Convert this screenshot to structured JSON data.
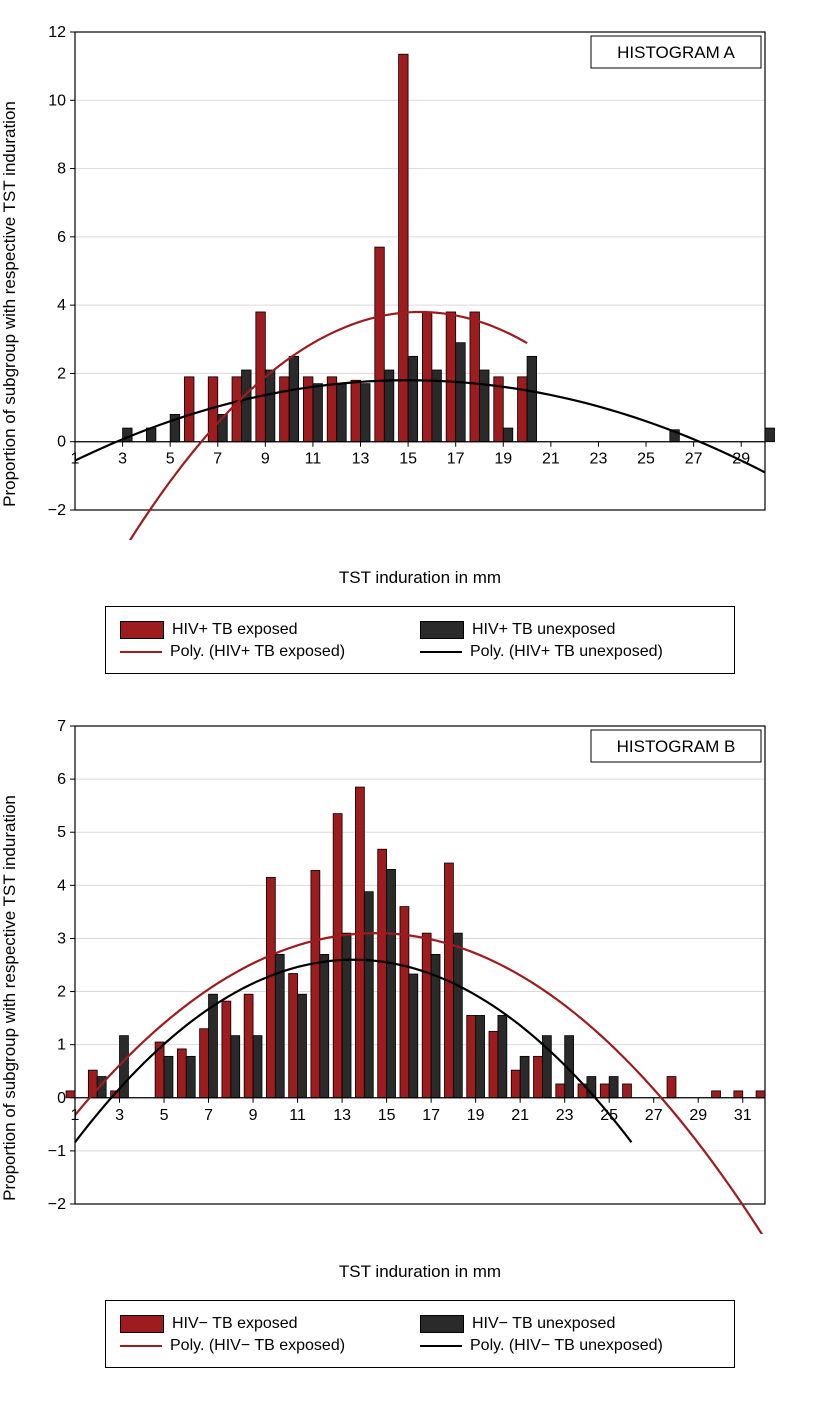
{
  "global": {
    "ylabel": "Proportion of subgroup with respective TST induration",
    "xlabel": "TST induration in mm",
    "colors": {
      "series1_fill": "#9e1b1e",
      "series2_fill": "#2a2a2a",
      "bar_stroke": "#000000",
      "line1": "#9e1b1e",
      "line2": "#000000",
      "grid": "#d9d9d9",
      "axis": "#000000",
      "background": "#ffffff"
    },
    "line_width": 2.2,
    "bar_stroke_width": 0.8,
    "grid_width": 1,
    "axis_width": 1.2,
    "tick_fontsize": 16,
    "label_fontsize": 17
  },
  "panelA": {
    "title": "HISTOGRAM A",
    "x_min": 1,
    "x_max": 30,
    "y_min": -2,
    "y_max": 12,
    "y_ticks": [
      -2,
      0,
      2,
      4,
      6,
      8,
      10,
      12
    ],
    "x_ticks": [
      1,
      3,
      5,
      7,
      9,
      11,
      13,
      15,
      17,
      19,
      21,
      23,
      25,
      27,
      29
    ],
    "bar_group_width": 0.8,
    "series1": {
      "label": "HIV+ TB exposed",
      "values": {
        "6": 1.9,
        "7": 1.9,
        "8": 1.9,
        "9": 3.8,
        "10": 1.9,
        "11": 1.9,
        "12": 1.9,
        "13": 1.8,
        "14": 5.7,
        "15": 11.35,
        "16": 3.8,
        "17": 3.8,
        "18": 3.8,
        "19": 1.9,
        "20": 1.9
      }
    },
    "series2": {
      "label": "HIV+ TB unexposed",
      "values": {
        "3": 0.4,
        "4": 0.4,
        "5": 0.8,
        "7": 0.8,
        "8": 2.1,
        "9": 2.1,
        "10": 2.5,
        "11": 1.7,
        "12": 1.7,
        "13": 1.7,
        "14": 2.1,
        "15": 2.5,
        "16": 2.1,
        "17": 2.9,
        "18": 2.1,
        "19": 0.4,
        "20": 2.5,
        "26": 0.35,
        "30": 0.4
      }
    },
    "poly1": {
      "label": "Poly. (HIV+ TB exposed)",
      "x_start": 1,
      "x_end": 20,
      "a": -0.045,
      "h": 15.5,
      "k": 3.8,
      "shift_at_start": -1.2
    },
    "poly2": {
      "label": "Poly. (HIV+ TB unexposed)",
      "x_start": 1,
      "x_end": 30,
      "a": -0.012,
      "h": 15,
      "k": 1.8,
      "shift_at_start": 0
    }
  },
  "panelB": {
    "title": "HISTOGRAM B",
    "x_min": 1,
    "x_max": 32,
    "y_min": -2,
    "y_max": 7,
    "y_ticks": [
      -2,
      -1,
      0,
      1,
      2,
      3,
      4,
      5,
      6,
      7
    ],
    "x_ticks": [
      1,
      3,
      5,
      7,
      9,
      11,
      13,
      15,
      17,
      19,
      21,
      23,
      25,
      27,
      29,
      31
    ],
    "bar_group_width": 0.8,
    "series1": {
      "label": "HIV− TB exposed",
      "values": {
        "1": 0.13,
        "2": 0.52,
        "3": 0.13,
        "5": 1.05,
        "6": 0.92,
        "7": 1.3,
        "8": 1.82,
        "9": 1.95,
        "10": 4.15,
        "11": 2.34,
        "12": 4.28,
        "13": 5.35,
        "14": 5.85,
        "15": 4.68,
        "16": 3.6,
        "17": 3.1,
        "18": 4.42,
        "19": 1.55,
        "20": 1.25,
        "21": 0.52,
        "22": 0.78,
        "23": 0.26,
        "24": 0.26,
        "25": 0.26,
        "26": 0.26,
        "28": 0.4,
        "30": 0.13,
        "31": 0.13,
        "32": 0.13
      }
    },
    "series2": {
      "label": "HIV− TB unexposed",
      "values": {
        "2": 0.4,
        "3": 1.17,
        "5": 0.78,
        "6": 0.78,
        "7": 1.95,
        "8": 1.17,
        "9": 1.17,
        "10": 2.7,
        "11": 1.95,
        "12": 2.7,
        "13": 3.1,
        "14": 3.88,
        "15": 4.3,
        "16": 2.33,
        "17": 2.7,
        "18": 3.1,
        "19": 1.55,
        "20": 1.55,
        "21": 0.78,
        "22": 1.17,
        "23": 1.17,
        "24": 0.4,
        "25": 0.4
      }
    },
    "poly1": {
      "label": "Poly. (HIV− TB exposed)",
      "x_start": 1,
      "x_end": 32,
      "a": -0.0188,
      "h": 14.5,
      "k": 3.1,
      "shift_at_start": 0
    },
    "poly2": {
      "label": "Poly. (HIV− TB unexposed)",
      "x_start": 1,
      "x_end": 26,
      "a": -0.022,
      "h": 13.5,
      "k": 2.6,
      "shift_at_start": 0
    }
  }
}
